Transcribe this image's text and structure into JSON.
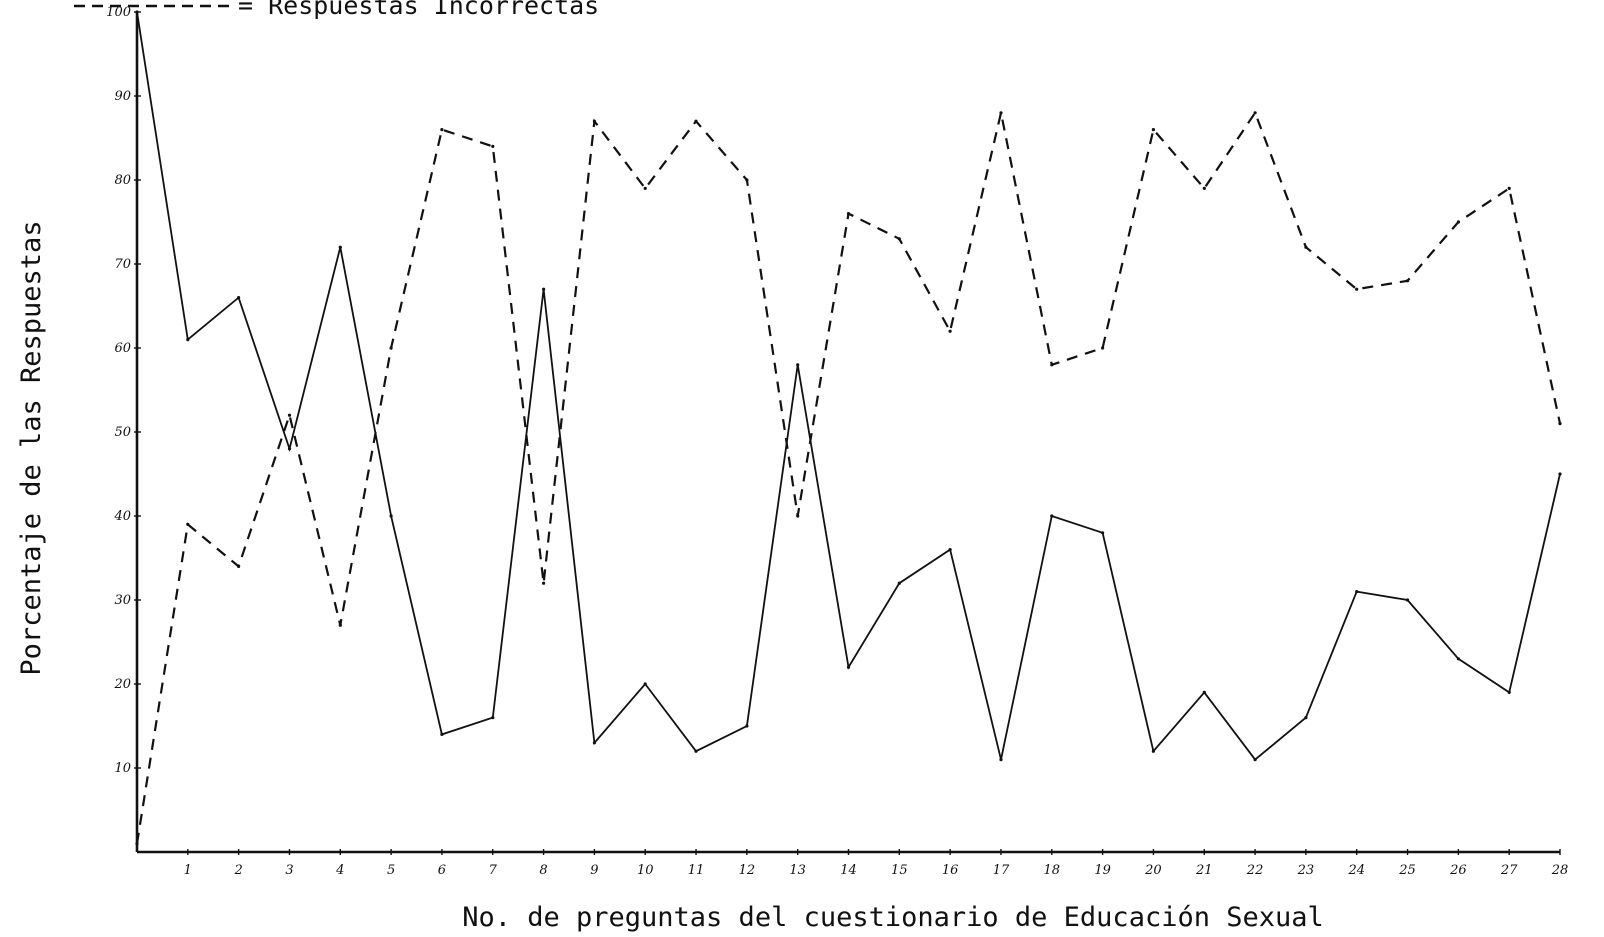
{
  "chart_data": {
    "type": "line",
    "title": "",
    "xlabel": "No. de preguntas del cuestionario de Educación Sexual",
    "ylabel": "Porcentaje de las Respuestas",
    "legend": {
      "placement": "top-left",
      "entries": [
        {
          "style": "dashed",
          "text": "= Respuestas Incorrectas"
        }
      ]
    },
    "xlim": [
      0,
      28
    ],
    "ylim": [
      0,
      100
    ],
    "x_ticks": [
      1,
      2,
      3,
      4,
      5,
      6,
      7,
      8,
      9,
      10,
      11,
      12,
      13,
      14,
      15,
      16,
      17,
      18,
      19,
      20,
      21,
      22,
      23,
      24,
      25,
      26,
      27,
      28
    ],
    "y_ticks": [
      10,
      20,
      30,
      40,
      50,
      60,
      70,
      80,
      90,
      100
    ],
    "grid": false,
    "colors": {
      "ink": "#111111",
      "background": "#ffffff"
    },
    "series": [
      {
        "style": "solid",
        "x": [
          0,
          1,
          2,
          3,
          4,
          5,
          6,
          7,
          8,
          9,
          10,
          11,
          12,
          13,
          14,
          15,
          16,
          17,
          18,
          19,
          20,
          21,
          22,
          23,
          24,
          25,
          26,
          27,
          28
        ],
        "values": [
          100,
          61,
          66,
          48,
          72,
          40,
          14,
          16,
          67,
          13,
          20,
          12,
          15,
          58,
          22,
          32,
          36,
          11,
          40,
          38,
          12,
          19,
          11,
          16,
          31,
          30,
          23,
          19,
          45
        ]
      },
      {
        "name": "Respuestas Incorrectas",
        "style": "dashed",
        "x": [
          0,
          1,
          2,
          3,
          4,
          5,
          6,
          7,
          8,
          9,
          10,
          11,
          12,
          13,
          14,
          15,
          16,
          17,
          18,
          19,
          20,
          21,
          22,
          23,
          24,
          25,
          26,
          27,
          28
        ],
        "values": [
          1,
          39,
          34,
          52,
          27,
          60,
          86,
          84,
          32,
          87,
          79,
          87,
          80,
          40,
          76,
          73,
          62,
          88,
          58,
          60,
          86,
          79,
          88,
          72,
          67,
          68,
          75,
          79,
          51
        ]
      }
    ]
  }
}
